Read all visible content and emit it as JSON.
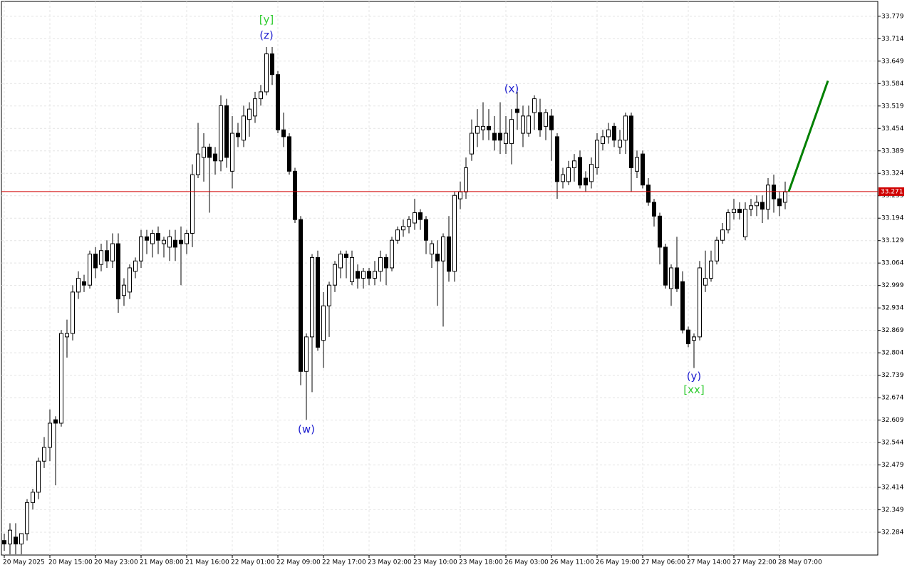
{
  "chart_data": {
    "type": "candlestick",
    "categories": [
      "20 May 2025",
      null,
      null,
      null,
      null,
      null,
      null,
      null,
      "20 May 15:00",
      null,
      null,
      null,
      null,
      null,
      null,
      null,
      "20 May 23:00",
      null,
      null,
      null,
      null,
      null,
      null,
      null,
      "21 May 08:00",
      null,
      null,
      null,
      null,
      null,
      null,
      null,
      "21 May 16:00",
      null,
      null,
      null,
      null,
      null,
      null,
      null,
      "22 May 01:00",
      null,
      null,
      null,
      null,
      null,
      null,
      null,
      "22 May 09:00",
      null,
      null,
      null,
      null,
      null,
      null,
      null,
      "22 May 17:00",
      null,
      null,
      null,
      null,
      null,
      null,
      null,
      "23 May 02:00",
      null,
      null,
      null,
      null,
      null,
      null,
      null,
      "23 May 10:00",
      null,
      null,
      null,
      null,
      null,
      null,
      null,
      "23 May 18:00",
      null,
      null,
      null,
      null,
      null,
      null,
      null,
      "26 May 03:00",
      null,
      null,
      null,
      null,
      null,
      null,
      null,
      "26 May 11:00",
      null,
      null,
      null,
      null,
      null,
      null,
      null,
      "26 May 19:00",
      null,
      null,
      null,
      null,
      null,
      null,
      null,
      "27 May 06:00",
      null,
      null,
      null,
      null,
      null,
      null,
      null,
      "27 May 14:00",
      null,
      null,
      null,
      null,
      null,
      null,
      null,
      "27 May 22:00",
      null,
      null,
      null,
      null,
      null,
      null,
      null,
      "28 May 07:00",
      null
    ],
    "candles": [
      [
        32.26,
        32.28,
        32.23,
        32.25
      ],
      [
        32.25,
        32.31,
        32.22,
        32.29
      ],
      [
        32.27,
        32.31,
        32.22,
        32.25
      ],
      [
        32.25,
        32.28,
        32.22,
        32.28
      ],
      [
        32.28,
        32.38,
        32.26,
        32.37
      ],
      [
        32.37,
        32.41,
        32.35,
        32.4
      ],
      [
        32.4,
        32.5,
        32.38,
        32.49
      ],
      [
        32.49,
        32.56,
        32.47,
        32.53
      ],
      [
        32.53,
        32.64,
        32.49,
        32.6
      ],
      [
        32.61,
        32.62,
        32.42,
        32.6
      ],
      [
        32.6,
        32.87,
        32.59,
        32.86
      ],
      [
        32.85,
        32.9,
        32.79,
        32.86
      ],
      [
        32.86,
        33.0,
        32.84,
        32.98
      ],
      [
        32.98,
        33.04,
        32.96,
        33.02
      ],
      [
        33.01,
        33.03,
        32.98,
        33.0
      ],
      [
        33.0,
        33.1,
        32.99,
        33.09
      ],
      [
        33.09,
        33.11,
        33.02,
        33.05
      ],
      [
        33.06,
        33.12,
        33.04,
        33.1
      ],
      [
        33.1,
        33.13,
        33.05,
        33.07
      ],
      [
        33.07,
        33.15,
        33.05,
        33.12
      ],
      [
        33.12,
        33.15,
        32.92,
        32.96
      ],
      [
        32.97,
        33.02,
        32.94,
        33.0
      ],
      [
        32.98,
        33.06,
        32.96,
        33.05
      ],
      [
        33.04,
        33.08,
        33.02,
        33.07
      ],
      [
        33.07,
        33.16,
        33.05,
        33.14
      ],
      [
        33.14,
        33.16,
        33.09,
        33.13
      ],
      [
        33.12,
        33.16,
        33.08,
        33.15
      ],
      [
        33.15,
        33.17,
        33.09,
        33.13
      ],
      [
        33.12,
        33.14,
        33.08,
        33.13
      ],
      [
        33.11,
        33.16,
        33.07,
        33.14
      ],
      [
        33.13,
        33.16,
        33.07,
        33.11
      ],
      [
        33.13,
        33.17,
        33.0,
        33.12
      ],
      [
        33.12,
        33.16,
        33.09,
        33.15
      ],
      [
        33.15,
        33.35,
        33.11,
        33.32
      ],
      [
        33.32,
        33.47,
        33.31,
        33.38
      ],
      [
        33.37,
        33.44,
        33.3,
        33.4
      ],
      [
        33.4,
        33.41,
        33.21,
        33.37
      ],
      [
        33.38,
        33.4,
        33.32,
        33.36
      ],
      [
        33.36,
        33.55,
        33.33,
        33.52
      ],
      [
        33.52,
        33.54,
        33.34,
        33.37
      ],
      [
        33.33,
        33.49,
        33.28,
        33.44
      ],
      [
        33.44,
        33.47,
        33.4,
        33.43
      ],
      [
        33.42,
        33.52,
        33.4,
        33.49
      ],
      [
        33.48,
        33.53,
        33.43,
        33.51
      ],
      [
        33.49,
        33.56,
        33.47,
        33.54
      ],
      [
        33.54,
        33.58,
        33.52,
        33.56
      ],
      [
        33.56,
        33.69,
        33.55,
        33.67
      ],
      [
        33.67,
        33.69,
        33.58,
        33.61
      ],
      [
        33.61,
        33.62,
        33.44,
        33.45
      ],
      [
        33.45,
        33.5,
        33.4,
        33.43
      ],
      [
        33.43,
        33.44,
        33.32,
        33.33
      ],
      [
        33.33,
        33.34,
        33.18,
        33.19
      ],
      [
        33.19,
        33.2,
        32.71,
        32.75
      ],
      [
        32.75,
        32.86,
        32.61,
        32.85
      ],
      [
        32.85,
        33.09,
        32.69,
        33.08
      ],
      [
        33.08,
        33.1,
        32.81,
        32.82
      ],
      [
        32.84,
        32.98,
        32.76,
        32.94
      ],
      [
        32.94,
        33.01,
        32.85,
        33.0
      ],
      [
        33.0,
        33.07,
        32.98,
        33.06
      ],
      [
        33.05,
        33.1,
        33.02,
        33.09
      ],
      [
        33.09,
        33.1,
        33.02,
        33.08
      ],
      [
        33.01,
        33.1,
        33.0,
        33.08
      ],
      [
        33.04,
        33.06,
        32.99,
        33.02
      ],
      [
        33.02,
        33.05,
        32.99,
        33.04
      ],
      [
        33.04,
        33.05,
        33.0,
        33.02
      ],
      [
        33.02,
        33.07,
        33.0,
        33.04
      ],
      [
        33.04,
        33.1,
        33.01,
        33.08
      ],
      [
        33.08,
        33.09,
        33.0,
        33.05
      ],
      [
        33.05,
        33.14,
        33.04,
        33.13
      ],
      [
        33.13,
        33.17,
        33.12,
        33.16
      ],
      [
        33.16,
        33.19,
        33.14,
        33.17
      ],
      [
        33.17,
        33.2,
        33.15,
        33.19
      ],
      [
        33.18,
        33.25,
        33.16,
        33.21
      ],
      [
        33.21,
        33.22,
        33.16,
        33.19
      ],
      [
        33.19,
        33.2,
        33.09,
        33.13
      ],
      [
        33.09,
        33.13,
        33.05,
        33.12
      ],
      [
        33.09,
        33.13,
        32.94,
        33.07
      ],
      [
        33.07,
        33.15,
        32.88,
        33.14
      ],
      [
        33.14,
        33.2,
        33.01,
        33.04
      ],
      [
        33.04,
        33.27,
        33.01,
        33.26
      ],
      [
        33.25,
        33.3,
        33.22,
        33.27
      ],
      [
        33.27,
        33.37,
        33.25,
        33.34
      ],
      [
        33.38,
        33.48,
        33.36,
        33.44
      ],
      [
        33.44,
        33.51,
        33.4,
        33.46
      ],
      [
        33.45,
        33.53,
        33.42,
        33.46
      ],
      [
        33.46,
        33.51,
        33.42,
        33.45
      ],
      [
        33.44,
        33.49,
        33.39,
        33.42
      ],
      [
        33.44,
        33.53,
        33.38,
        33.42
      ],
      [
        33.41,
        33.49,
        33.38,
        33.44
      ],
      [
        33.41,
        33.51,
        33.35,
        33.48
      ],
      [
        33.51,
        33.56,
        33.45,
        33.5
      ],
      [
        33.44,
        33.52,
        33.4,
        33.49
      ],
      [
        33.44,
        33.52,
        33.43,
        33.49
      ],
      [
        33.5,
        33.55,
        33.45,
        33.54
      ],
      [
        33.5,
        33.54,
        33.43,
        33.45
      ],
      [
        33.46,
        33.51,
        33.42,
        33.5
      ],
      [
        33.49,
        33.51,
        33.36,
        33.45
      ],
      [
        33.43,
        33.44,
        33.25,
        33.3
      ],
      [
        33.3,
        33.34,
        33.28,
        33.32
      ],
      [
        33.3,
        33.36,
        33.29,
        33.34
      ],
      [
        33.34,
        33.38,
        33.3,
        33.36
      ],
      [
        33.37,
        33.39,
        33.28,
        33.29
      ],
      [
        33.31,
        33.33,
        33.27,
        33.29
      ],
      [
        33.3,
        33.37,
        33.28,
        33.35
      ],
      [
        33.34,
        33.44,
        33.32,
        33.42
      ],
      [
        33.41,
        33.45,
        33.39,
        33.43
      ],
      [
        33.43,
        33.47,
        33.41,
        33.45
      ],
      [
        33.46,
        33.47,
        33.4,
        33.42
      ],
      [
        33.4,
        33.45,
        33.38,
        33.42
      ],
      [
        33.42,
        33.5,
        33.38,
        33.49
      ],
      [
        33.49,
        33.5,
        33.27,
        33.34
      ],
      [
        33.33,
        33.39,
        33.31,
        33.37
      ],
      [
        33.38,
        33.39,
        33.28,
        33.29
      ],
      [
        33.29,
        33.31,
        33.23,
        33.24
      ],
      [
        33.24,
        33.25,
        33.17,
        33.2
      ],
      [
        33.2,
        33.21,
        33.06,
        33.11
      ],
      [
        33.11,
        33.12,
        32.99,
        33.0
      ],
      [
        32.99,
        33.06,
        32.94,
        33.05
      ],
      [
        33.05,
        33.14,
        32.98,
        32.99
      ],
      [
        33.01,
        33.04,
        32.86,
        32.87
      ],
      [
        32.87,
        32.88,
        32.82,
        32.83
      ],
      [
        32.84,
        32.86,
        32.76,
        32.85
      ],
      [
        32.85,
        33.07,
        32.84,
        33.05
      ],
      [
        33.0,
        33.1,
        32.98,
        33.02
      ],
      [
        33.02,
        33.1,
        33.01,
        33.07
      ],
      [
        33.07,
        33.14,
        33.06,
        33.13
      ],
      [
        33.13,
        33.18,
        33.12,
        33.16
      ],
      [
        33.16,
        33.22,
        33.15,
        33.21
      ],
      [
        33.21,
        33.25,
        33.19,
        33.22
      ],
      [
        33.22,
        33.24,
        33.19,
        33.21
      ],
      [
        33.14,
        33.24,
        33.13,
        33.22
      ],
      [
        33.22,
        33.25,
        33.2,
        33.23
      ],
      [
        33.23,
        33.26,
        33.2,
        33.24
      ],
      [
        33.24,
        33.26,
        33.18,
        33.22
      ],
      [
        33.22,
        33.31,
        33.19,
        33.29
      ],
      [
        33.29,
        33.32,
        33.21,
        33.25
      ],
      [
        33.25,
        33.27,
        33.2,
        33.23
      ],
      [
        33.24,
        33.3,
        33.22,
        33.27
      ]
    ],
    "ylim": [
      32.218,
      33.822
    ],
    "yticks": [
      33.779,
      33.714,
      33.649,
      33.584,
      33.519,
      33.454,
      33.389,
      33.324,
      33.259,
      33.194,
      33.129,
      33.064,
      32.999,
      32.934,
      32.869,
      32.804,
      32.739,
      32.674,
      32.609,
      32.544,
      32.479,
      32.414,
      32.349,
      32.284
    ],
    "grid": true,
    "current_price": {
      "value": 33.271,
      "color": "#d00000"
    },
    "forecast": {
      "from": 33.271,
      "to": 33.592,
      "color": "#008000"
    },
    "annotations": [
      {
        "text": "[y]",
        "color": "#33cc33"
      },
      {
        "text": "(z)",
        "color": "#2020d0"
      },
      {
        "text": "(x)",
        "color": "#2020d0"
      },
      {
        "text": "(w)",
        "color": "#2020d0"
      },
      {
        "text": "(y)",
        "color": "#2020d0"
      },
      {
        "text": "[xx]",
        "color": "#33cc33"
      }
    ]
  }
}
